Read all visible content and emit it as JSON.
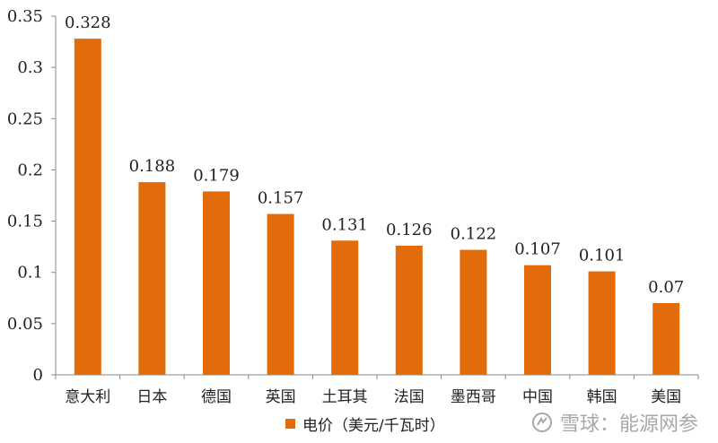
{
  "colors": {
    "bar": "#E36C0A",
    "axis": "#888888",
    "text": "#222222"
  },
  "watermark": {
    "text": "雪球：能源网参"
  },
  "chart_data": {
    "type": "bar",
    "title": "",
    "xlabel": "",
    "ylabel": "",
    "ylim": [
      0,
      0.35
    ],
    "yticks": [
      "0",
      "0.05",
      "0.1",
      "0.15",
      "0.2",
      "0.25",
      "0.3",
      "0.35"
    ],
    "grid": false,
    "legend": "bottom",
    "categories": [
      "意大利",
      "日本",
      "德国",
      "英国",
      "土耳其",
      "法国",
      "墨西哥",
      "中国",
      "韩国",
      "美国"
    ],
    "series": [
      {
        "name": "电价（美元/千瓦时）",
        "values": [
          0.328,
          0.188,
          0.179,
          0.157,
          0.131,
          0.126,
          0.122,
          0.107,
          0.101,
          0.07
        ],
        "labels": [
          "0.328",
          "0.188",
          "0.179",
          "0.157",
          "0.131",
          "0.126",
          "0.122",
          "0.107",
          "0.101",
          "0.07"
        ]
      }
    ]
  }
}
